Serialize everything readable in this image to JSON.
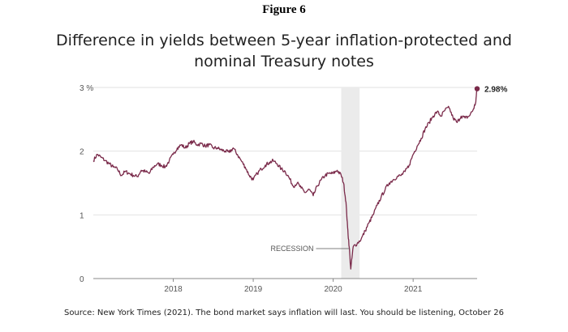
{
  "figure_label": "Figure 6",
  "source_text": "Source: New York Times (2021). The bond market says inflation will last. You should be listening, October 26",
  "colors": {
    "line": "#7a2a4a",
    "shade": "#ebebeb",
    "grid": "#e2e2e2",
    "axis": "#555555"
  },
  "chart_data": {
    "type": "line",
    "title": "Difference in yields between 5-year inflation-protected and nominal Treasury notes",
    "xlabel": "",
    "ylabel": "",
    "xlim": [
      2017.0,
      2021.8
    ],
    "ylim": [
      0,
      3
    ],
    "y_ticks": [
      {
        "value": 0,
        "label": "0"
      },
      {
        "value": 1,
        "label": "1"
      },
      {
        "value": 2,
        "label": "2"
      },
      {
        "value": 3,
        "label": "3 %"
      }
    ],
    "x_ticks": [
      {
        "value": 2018,
        "label": "2018"
      },
      {
        "value": 2019,
        "label": "2019"
      },
      {
        "value": 2020,
        "label": "2020"
      },
      {
        "value": 2021,
        "label": "2021"
      }
    ],
    "grid": true,
    "shaded_region": {
      "x": [
        2020.1,
        2020.33
      ],
      "label": "RECESSION"
    },
    "end_label": "2.98%",
    "series": [
      {
        "x": [
          2017.0,
          2017.05,
          2017.1,
          2017.15,
          2017.2,
          2017.25,
          2017.3,
          2017.35,
          2017.4,
          2017.45,
          2017.5,
          2017.55,
          2017.6,
          2017.65,
          2017.7,
          2017.75,
          2017.8,
          2017.85,
          2017.9,
          2017.95,
          2018.0,
          2018.05,
          2018.1,
          2018.15,
          2018.2,
          2018.25,
          2018.3,
          2018.35,
          2018.4,
          2018.45,
          2018.5,
          2018.55,
          2018.6,
          2018.65,
          2018.7,
          2018.75,
          2018.8,
          2018.85,
          2018.9,
          2018.95,
          2019.0,
          2019.05,
          2019.1,
          2019.15,
          2019.2,
          2019.25,
          2019.3,
          2019.35,
          2019.4,
          2019.45,
          2019.5,
          2019.55,
          2019.6,
          2019.65,
          2019.7,
          2019.75,
          2019.8,
          2019.85,
          2019.9,
          2019.95,
          2020.0,
          2020.05,
          2020.1,
          2020.13,
          2020.16,
          2020.18,
          2020.2,
          2020.22,
          2020.25,
          2020.3,
          2020.35,
          2020.4,
          2020.45,
          2020.5,
          2020.55,
          2020.6,
          2020.65,
          2020.7,
          2020.75,
          2020.8,
          2020.85,
          2020.9,
          2020.95,
          2021.0,
          2021.05,
          2021.1,
          2021.15,
          2021.2,
          2021.25,
          2021.3,
          2021.35,
          2021.4,
          2021.45,
          2021.5,
          2021.55,
          2021.6,
          2021.65,
          2021.7,
          2021.75,
          2021.78,
          2021.8
        ],
        "y": [
          1.85,
          1.95,
          1.9,
          1.85,
          1.8,
          1.75,
          1.72,
          1.62,
          1.68,
          1.65,
          1.62,
          1.6,
          1.7,
          1.68,
          1.65,
          1.75,
          1.8,
          1.78,
          1.75,
          1.85,
          1.95,
          2.05,
          2.1,
          2.05,
          2.12,
          2.15,
          2.1,
          2.12,
          2.08,
          2.1,
          2.05,
          2.05,
          2.02,
          2.0,
          1.98,
          2.05,
          1.95,
          1.85,
          1.75,
          1.62,
          1.55,
          1.65,
          1.72,
          1.78,
          1.82,
          1.85,
          1.8,
          1.72,
          1.68,
          1.58,
          1.45,
          1.5,
          1.42,
          1.35,
          1.4,
          1.3,
          1.45,
          1.55,
          1.62,
          1.65,
          1.65,
          1.7,
          1.62,
          1.5,
          1.2,
          0.8,
          0.5,
          0.15,
          0.5,
          0.55,
          0.62,
          0.75,
          0.88,
          1.0,
          1.15,
          1.28,
          1.4,
          1.5,
          1.55,
          1.6,
          1.62,
          1.68,
          1.78,
          1.95,
          2.08,
          2.2,
          2.35,
          2.45,
          2.55,
          2.62,
          2.55,
          2.65,
          2.68,
          2.52,
          2.45,
          2.55,
          2.52,
          2.55,
          2.65,
          2.75,
          2.98
        ]
      }
    ]
  }
}
